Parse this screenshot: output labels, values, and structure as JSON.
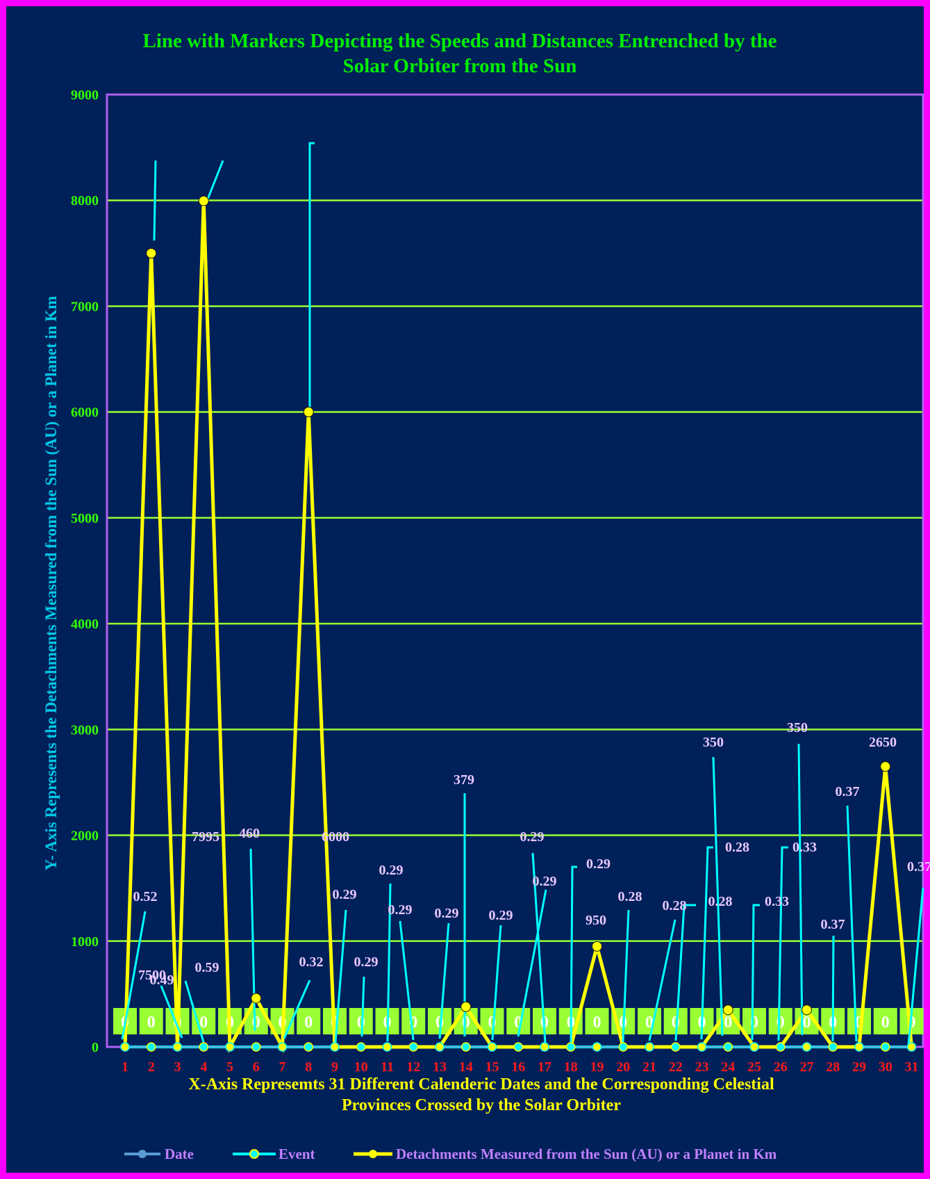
{
  "chart_data": {
    "type": "line",
    "title_line1": "Line with Markers Depicting the Speeds and Distances Entrenched by the",
    "title_line2": "Solar Orbiter from the Sun",
    "ylabel": "Y- Axis Represents the Detachments Measured from the Sun (AU) or a Planet in Km",
    "xlabel_line1": "X-Axis Represemts 31 Different Calenderic Dates and the Corresponding  Celestial",
    "xlabel_line2": "Provinces Crossed by the Solar Orbiter",
    "ylim": [
      0,
      9000
    ],
    "yticks": [
      0,
      1000,
      2000,
      3000,
      4000,
      5000,
      6000,
      7000,
      8000,
      9000
    ],
    "grid": true,
    "legend_position": "bottom",
    "categories": [
      "1",
      "2",
      "3",
      "4",
      "5",
      "6",
      "7",
      "8",
      "9",
      "10",
      "11",
      "12",
      "13",
      "14",
      "15",
      "16",
      "17",
      "18",
      "19",
      "20",
      "21",
      "22",
      "23",
      "24",
      "25",
      "26",
      "27",
      "28",
      "29",
      "30",
      "31"
    ],
    "series": [
      {
        "name": "Date",
        "color": "#5b9bd5",
        "values": [
          0,
          0,
          0,
          0,
          0,
          0,
          0,
          0,
          0,
          0,
          0,
          0,
          0,
          0,
          0,
          0,
          0,
          0,
          0,
          0,
          0,
          0,
          0,
          0,
          0,
          0,
          0,
          0,
          0,
          0,
          0
        ],
        "labels": [
          "0",
          "0",
          "0",
          "0",
          "0",
          "0",
          "0",
          "0",
          "0",
          "0",
          "0",
          "0",
          "0",
          "0",
          "0",
          "0",
          "0",
          "0",
          "0",
          "0",
          "0",
          "0",
          "0",
          "0",
          "0",
          "0",
          "0",
          "0",
          "0",
          "0",
          "0"
        ]
      },
      {
        "name": "Event",
        "color": "#00ffff",
        "values": [
          0,
          0,
          0,
          0,
          0,
          0,
          0,
          0,
          0,
          0,
          0,
          0,
          0,
          0,
          0,
          0,
          0,
          0,
          0,
          0,
          0,
          0,
          0,
          0,
          0,
          0,
          0,
          0,
          0,
          0,
          0
        ],
        "labels": []
      },
      {
        "name": "Detachments Measured from the Sun (AU) or a Planet in Km",
        "color": "#ffff00",
        "values": [
          0.52,
          7500,
          0.49,
          7995,
          0.59,
          460,
          0.32,
          6000,
          0.29,
          0.29,
          0.29,
          0.29,
          0.29,
          379,
          0.29,
          0.29,
          0.29,
          0.29,
          950,
          0.28,
          0.28,
          0.28,
          0.28,
          350,
          0.33,
          0.33,
          350,
          0.37,
          0.37,
          2650,
          0.37
        ],
        "labels": [
          "0.52",
          "7500",
          "0.49",
          "7995",
          "0.59",
          "460",
          "0.32",
          "6000",
          "0.29",
          "0.29",
          "0.29",
          "0.29",
          "0.29",
          "379",
          "0.29",
          "0.29",
          "0.29",
          "0.29",
          "950",
          "0.28",
          "0.28",
          "0.28",
          "0.28",
          "350",
          "0.33",
          "0.33",
          "350",
          "0.37",
          "0.37",
          "2650",
          "0.37"
        ]
      }
    ]
  },
  "colors": {
    "background": "#00205a",
    "outer_border": "#ff00ff",
    "plot_border": "#b060f0",
    "gridline": "#99ff33",
    "leader_line": "#00ffff",
    "zero_label_box": "#99ff33"
  }
}
